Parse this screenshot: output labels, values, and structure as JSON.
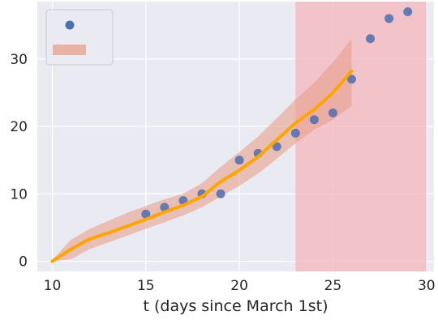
{
  "chart_data": {
    "type": "scatter",
    "title": "",
    "xlabel": "t (days since March 1st)",
    "ylabel": "",
    "xlim": [
      9.2,
      30.4
    ],
    "ylim": [
      -1.5,
      38.5
    ],
    "x_ticks": [
      10,
      15,
      20,
      25,
      30
    ],
    "y_ticks": [
      0,
      10,
      20,
      30
    ],
    "grid": true,
    "legend_placement": "top-left",
    "colors": {
      "background": "#eaeaf2",
      "points": "#4c6fb0",
      "line": "#ffa500",
      "band": "#e8a08a",
      "highlight": "#f4b7bc"
    },
    "highlight_region": {
      "x": [
        23,
        30
      ]
    },
    "series": [
      {
        "type": "scatter",
        "x": [
          15,
          16,
          17,
          18,
          19,
          20,
          21,
          22,
          23,
          24,
          25,
          26,
          27,
          28,
          29
        ],
        "y": [
          7,
          8,
          9,
          10,
          10,
          15,
          16,
          17,
          19,
          21,
          22,
          27,
          33,
          36,
          37
        ]
      },
      {
        "type": "line",
        "x": [
          10,
          11,
          12,
          13,
          14,
          15,
          16,
          17,
          18,
          19,
          20,
          21,
          22,
          23,
          24,
          25,
          26
        ],
        "y": [
          0,
          1.8,
          3.3,
          4.2,
          5.2,
          6.2,
          7.3,
          8.3,
          9.6,
          11.8,
          13.5,
          15.5,
          18,
          20.5,
          22.5,
          25,
          28.2
        ]
      },
      {
        "type": "band",
        "x": [
          10,
          11,
          12,
          13,
          14,
          15,
          16,
          17,
          18,
          19,
          20,
          21,
          22,
          23,
          24,
          25,
          26
        ],
        "lower": [
          0,
          0.3,
          1.8,
          2.8,
          3.8,
          4.8,
          5.8,
          6.8,
          8,
          9.6,
          11.2,
          13,
          15.2,
          17.5,
          19.5,
          21,
          23
        ],
        "upper": [
          0.2,
          3.2,
          4.8,
          6,
          7.2,
          8.2,
          9.2,
          10,
          11.6,
          14,
          16.2,
          18.5,
          21.2,
          24,
          26.5,
          29.5,
          33
        ]
      }
    ]
  }
}
